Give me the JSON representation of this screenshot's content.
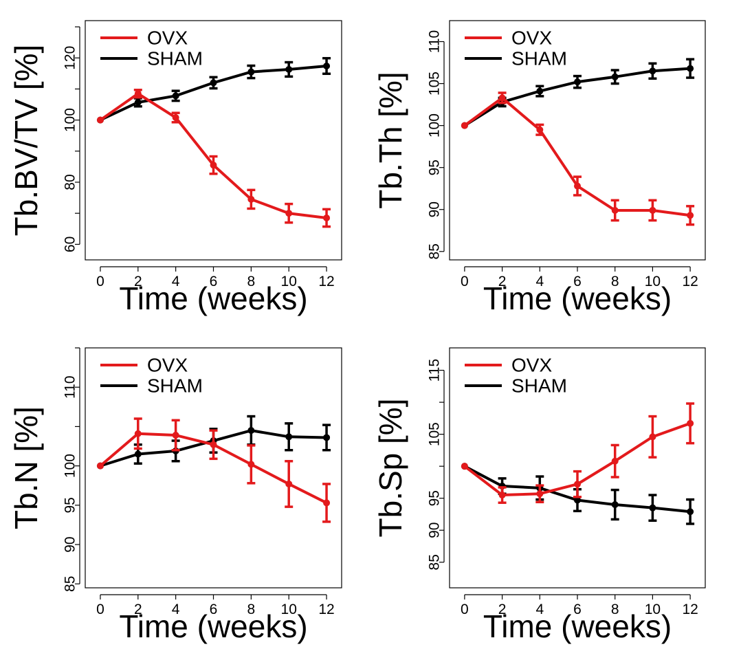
{
  "chart_data": [
    {
      "type": "line",
      "xlabel": "Time (weeks)",
      "ylabel": "Tb.BV/TV [%]",
      "x": [
        0,
        2,
        4,
        6,
        8,
        10,
        12
      ],
      "xticks": [
        0,
        2,
        4,
        6,
        8,
        10,
        12
      ],
      "ylim": [
        55,
        132
      ],
      "yticks": [
        60,
        80,
        100,
        120
      ],
      "yticks_minor": [
        70,
        90,
        110,
        130
      ],
      "legend": "top-left",
      "series": [
        {
          "name": "OVX",
          "color": "#e31a1c",
          "values": [
            100,
            108.5,
            100.8,
            85.5,
            74.5,
            70.0,
            68.5
          ],
          "errors": [
            0,
            1.2,
            1.5,
            2.8,
            3.0,
            3.0,
            2.8
          ]
        },
        {
          "name": "SHAM",
          "color": "#000000",
          "values": [
            100,
            105.7,
            107.8,
            112.0,
            115.5,
            116.3,
            117.4
          ],
          "errors": [
            0,
            1.3,
            1.6,
            1.8,
            2.0,
            2.3,
            2.5
          ]
        }
      ]
    },
    {
      "type": "line",
      "xlabel": "Time (weeks)",
      "ylabel": "Tb.Th [%]",
      "x": [
        0,
        2,
        4,
        6,
        8,
        10,
        12
      ],
      "xticks": [
        0,
        2,
        4,
        6,
        8,
        10,
        12
      ],
      "ylim": [
        84,
        112.5
      ],
      "yticks": [
        85,
        90,
        95,
        100,
        105,
        110
      ],
      "legend": "top-left",
      "series": [
        {
          "name": "OVX",
          "color": "#e31a1c",
          "values": [
            100,
            103.3,
            99.5,
            92.8,
            89.9,
            89.9,
            89.3
          ],
          "errors": [
            0,
            0.6,
            0.6,
            1.1,
            1.2,
            1.2,
            1.1
          ]
        },
        {
          "name": "SHAM",
          "color": "#000000",
          "values": [
            100,
            102.8,
            104.1,
            105.2,
            105.8,
            106.5,
            106.8
          ],
          "errors": [
            0,
            0.5,
            0.6,
            0.7,
            0.8,
            0.9,
            1.1
          ]
        }
      ]
    },
    {
      "type": "line",
      "xlabel": "Time (weeks)",
      "ylabel": "Tb.N [%]",
      "x": [
        0,
        2,
        4,
        6,
        8,
        10,
        12
      ],
      "xticks": [
        0,
        2,
        4,
        6,
        8,
        10,
        12
      ],
      "ylim": [
        84.5,
        115
      ],
      "yticks": [
        85,
        90,
        95,
        100,
        110
      ],
      "yticks_minor": [
        105,
        115
      ],
      "legend": "top-left",
      "series": [
        {
          "name": "OVX",
          "color": "#e31a1c",
          "values": [
            100,
            104.1,
            103.9,
            102.7,
            100.2,
            97.7,
            95.3
          ],
          "errors": [
            0,
            1.9,
            1.9,
            1.8,
            2.4,
            2.9,
            2.4
          ]
        },
        {
          "name": "SHAM",
          "color": "#000000",
          "values": [
            100,
            101.5,
            101.9,
            103.2,
            104.5,
            103.7,
            103.6
          ],
          "errors": [
            0,
            1.2,
            1.3,
            1.5,
            1.8,
            1.7,
            1.6
          ]
        }
      ]
    },
    {
      "type": "line",
      "xlabel": "Time (weeks)",
      "ylabel": "Tb.Sp [%]",
      "x": [
        0,
        2,
        4,
        6,
        8,
        10,
        12
      ],
      "xticks": [
        0,
        2,
        4,
        6,
        8,
        10,
        12
      ],
      "ylim": [
        81,
        118.5
      ],
      "yticks": [
        85,
        90,
        95,
        105,
        115
      ],
      "yticks_minor": [
        100,
        110
      ],
      "legend": "top-left",
      "series": [
        {
          "name": "OVX",
          "color": "#e31a1c",
          "values": [
            100,
            95.5,
            95.7,
            97.2,
            100.8,
            104.6,
            106.7
          ],
          "errors": [
            0,
            1.2,
            1.3,
            2.0,
            2.5,
            3.2,
            3.1
          ]
        },
        {
          "name": "SHAM",
          "color": "#000000",
          "values": [
            100,
            96.9,
            96.6,
            94.7,
            94.0,
            93.5,
            92.9
          ],
          "errors": [
            0,
            1.2,
            1.8,
            1.7,
            2.3,
            2.0,
            1.9
          ]
        }
      ]
    }
  ]
}
